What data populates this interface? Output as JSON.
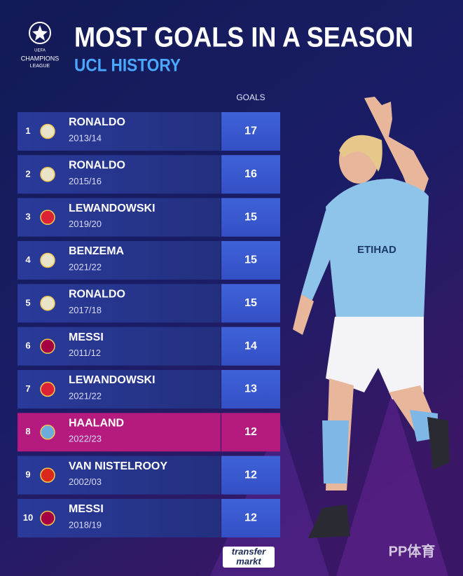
{
  "header": {
    "logo_top": "UEFA",
    "logo_line1": "CHAMPIONS",
    "logo_line2": "LEAGUE",
    "title": "MOST GOALS IN A SEASON",
    "subtitle": "UCL HISTORY"
  },
  "table": {
    "column_header": "GOALS",
    "rows": [
      {
        "rank": 1,
        "player": "RONALDO",
        "season": "2013/14",
        "goals": 17,
        "badge_color": "#e9e3c8"
      },
      {
        "rank": 2,
        "player": "RONALDO",
        "season": "2015/16",
        "goals": 16,
        "badge_color": "#e9e3c8"
      },
      {
        "rank": 3,
        "player": "LEWANDOWSKI",
        "season": "2019/20",
        "goals": 15,
        "badge_color": "#dc2335"
      },
      {
        "rank": 4,
        "player": "BENZEMA",
        "season": "2021/22",
        "goals": 15,
        "badge_color": "#e9e3c8"
      },
      {
        "rank": 5,
        "player": "RONALDO",
        "season": "2017/18",
        "goals": 15,
        "badge_color": "#e9e3c8"
      },
      {
        "rank": 6,
        "player": "MESSI",
        "season": "2011/12",
        "goals": 14,
        "badge_color": "#a50044"
      },
      {
        "rank": 7,
        "player": "LEWANDOWSKI",
        "season": "2021/22",
        "goals": 13,
        "badge_color": "#dc2335"
      },
      {
        "rank": 8,
        "player": "HAALAND",
        "season": "2022/23",
        "goals": 12,
        "badge_color": "#6cabdd",
        "row_color": "#b51a7e"
      },
      {
        "rank": 9,
        "player": "VAN NISTELROOY",
        "season": "2002/03",
        "goals": 12,
        "badge_color": "#da291c"
      },
      {
        "rank": 10,
        "player": "MESSI",
        "season": "2018/19",
        "goals": 12,
        "badge_color": "#a50044"
      }
    ]
  },
  "footer": {
    "brand_line1": "transfer",
    "brand_line2": "markt",
    "watermark": "PP体育"
  }
}
